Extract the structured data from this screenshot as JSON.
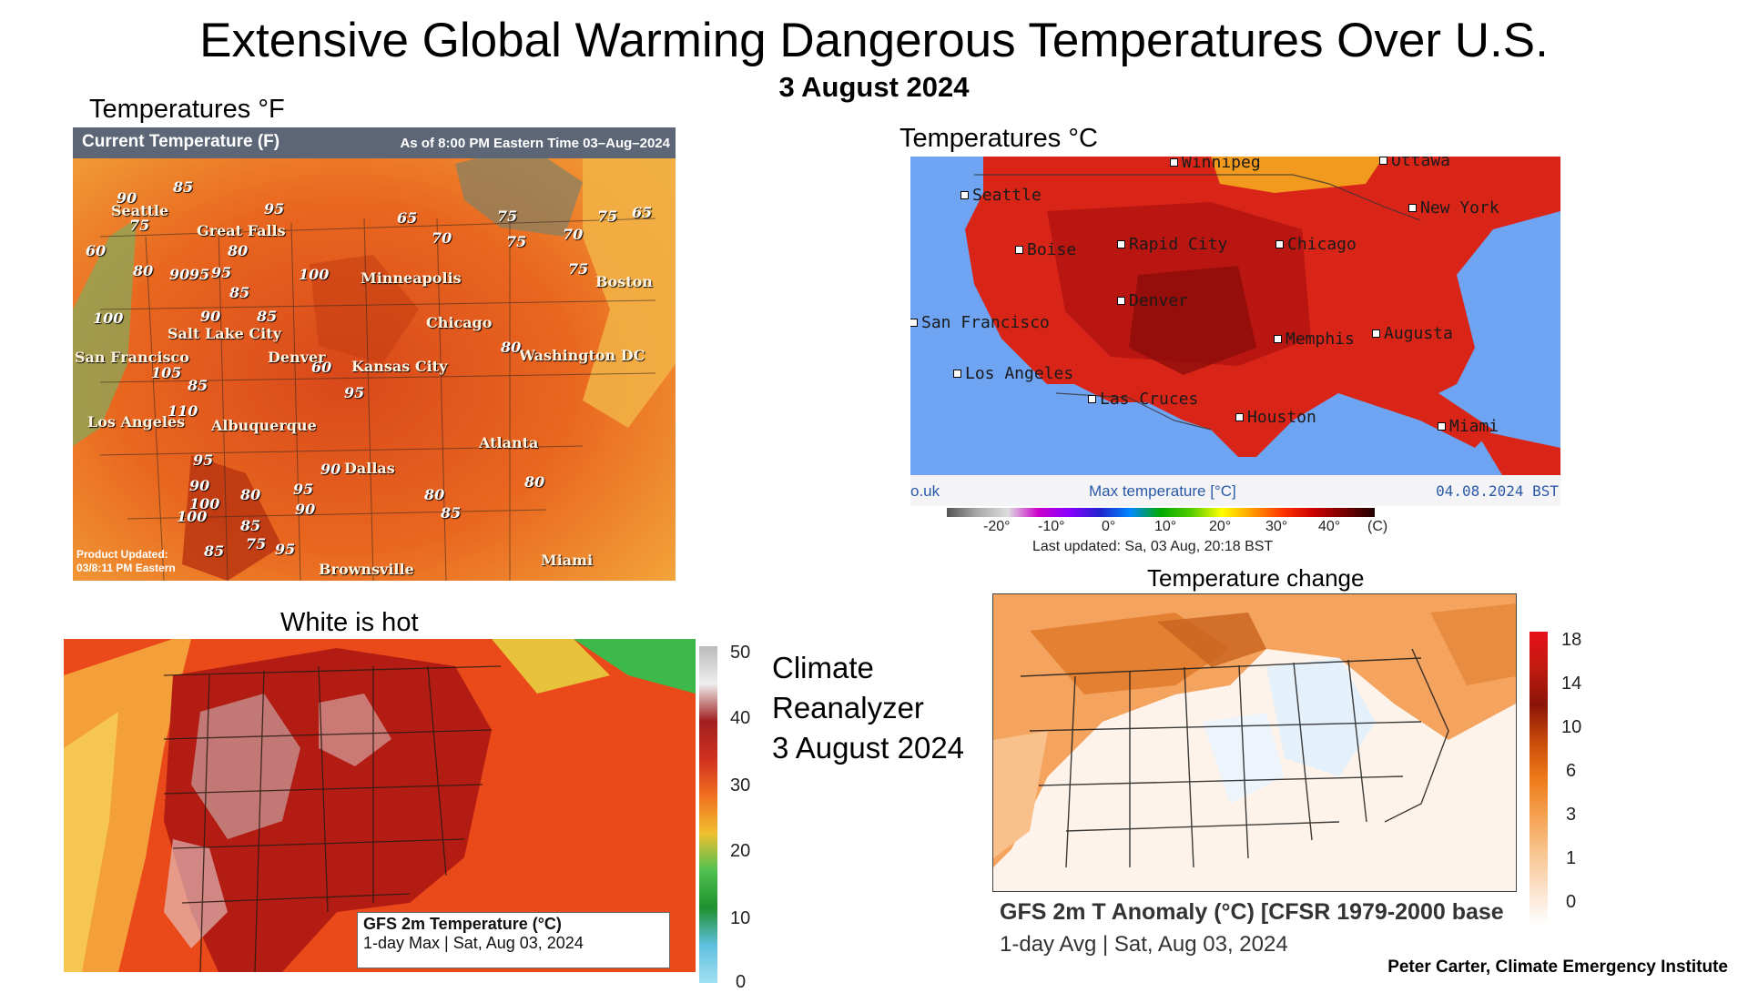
{
  "title": "Extensive Global Warming Dangerous Temperatures Over U.S.",
  "subtitle": "3 August 2024",
  "panel_f": {
    "label": "Temperatures °F",
    "header_title": "Current Temperature (F)",
    "header_time": "As of 8:00  PM Eastern Time 03–Aug–2024",
    "updated": "Product Updated:",
    "updated_time": "03/8:11 PM Eastern",
    "cities": [
      "Seattle",
      "Great Falls",
      "Minneapolis",
      "Boston",
      "Chicago",
      "Salt Lake City",
      "San Francisco",
      "Denver",
      "Kansas City",
      "Washington DC",
      "Los Angeles",
      "Albuquerque",
      "Atlanta",
      "Dallas",
      "Brownsville",
      "Miami"
    ],
    "temps": [
      "90",
      "85",
      "95",
      "75",
      "80",
      "90",
      "95",
      "100",
      "85",
      "60",
      "80",
      "95",
      "100",
      "90",
      "85",
      "65",
      "75",
      "70",
      "75",
      "75",
      "65",
      "70",
      "75",
      "80",
      "60",
      "85",
      "105",
      "95",
      "110",
      "95",
      "90",
      "100",
      "90",
      "95",
      "90",
      "80",
      "85",
      "80",
      "85",
      "75",
      "95",
      "100",
      "85",
      "80"
    ]
  },
  "panel_c": {
    "label": "Temperatures °C",
    "cities": [
      "Seattle",
      "Winnipeg",
      "Ottawa",
      "Boise",
      "Rapid City",
      "Chicago",
      "New York",
      "Denver",
      "San Francisco",
      "Memphis",
      "Augusta",
      "Los Angeles",
      "Las Cruces",
      "Houston",
      "Miami"
    ],
    "footer_left": "o.uk",
    "footer_mid": "Max temperature [°C]",
    "footer_right": "04.08.2024 BST",
    "scale_ticks": [
      "-20°",
      "-10°",
      "0°",
      "10°",
      "20°",
      "30°",
      "40°",
      "(C)"
    ],
    "last_updated": "Last updated: Sa, 03 Aug, 20:18 BST"
  },
  "panel_gfs": {
    "label": "White is hot",
    "box_title": "GFS 2m Temperature (°C)",
    "box_sub": "1-day Max | Sat, Aug 03, 2024",
    "colorbar_ticks": [
      "50",
      "40",
      "30",
      "20",
      "10",
      "0"
    ]
  },
  "climate_reanalyzer": {
    "line1": "Climate",
    "line2": "Reanalyzer",
    "line3": "3 August 2024"
  },
  "panel_anom": {
    "label": "Temperature change",
    "box_title": "GFS 2m T Anomaly (°C) [CFSR 1979-2000 base",
    "box_sub": "1-day Avg | Sat, Aug 03, 2024",
    "colorbar_ticks": [
      "18",
      "14",
      "10",
      "6",
      "3",
      "1",
      "0"
    ]
  },
  "credit": "Peter Carter,  Climate Emergency Institute"
}
